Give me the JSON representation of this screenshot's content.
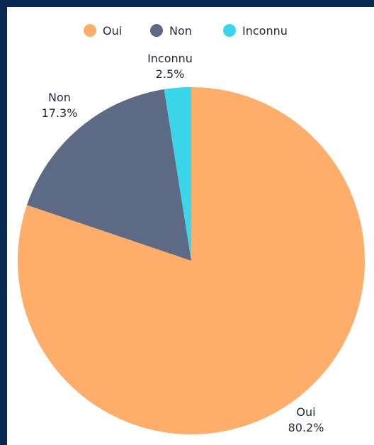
{
  "chart_data": {
    "type": "pie",
    "legend_position": "top",
    "slices": [
      {
        "name": "Oui",
        "value": 80.2,
        "label": "80.2%",
        "color": "#ffad6b"
      },
      {
        "name": "Non",
        "value": 17.3,
        "label": "17.3%",
        "color": "#5c6a86"
      },
      {
        "name": "Inconnu",
        "value": 2.5,
        "label": "2.5%",
        "color": "#3ad5e8"
      }
    ]
  },
  "colors": {
    "frame": "#0a2a52",
    "panel": "#ffffff",
    "text": "#1f2937"
  }
}
